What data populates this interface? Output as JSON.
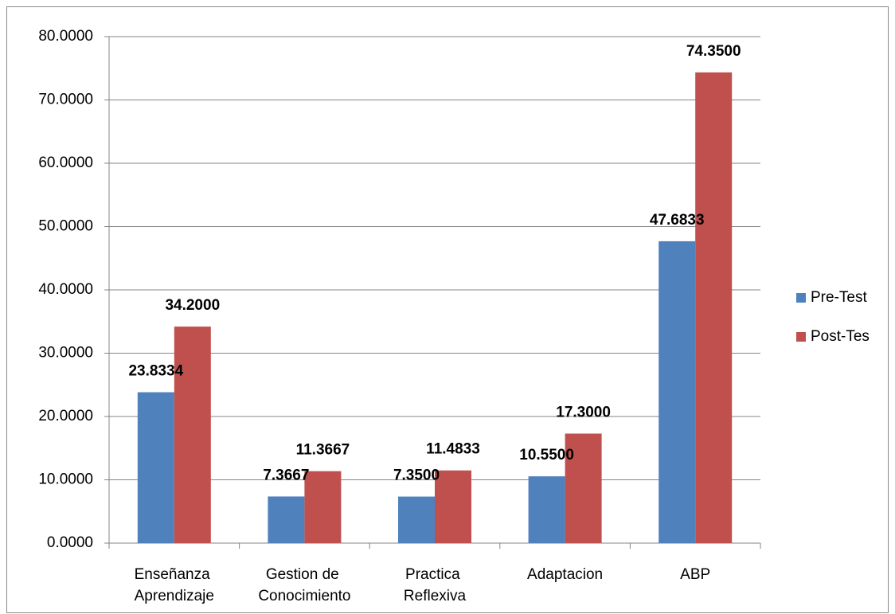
{
  "chart_data": {
    "type": "bar",
    "categories": [
      "Enseñanza Aprendizaje",
      "Gestion de Conocimiento",
      "Practica Reflexiva",
      "Adaptacion",
      "ABP"
    ],
    "series": [
      {
        "name": "Pre-Test",
        "color": "#4f81bd",
        "values": [
          23.8334,
          7.3667,
          7.35,
          10.55,
          47.6833
        ],
        "value_labels": [
          "23.8334",
          "7.3667",
          "7.3500",
          "10.5500",
          "47.6833"
        ]
      },
      {
        "name": "Post-Tes",
        "color": "#c0504d",
        "values": [
          34.2,
          11.3667,
          11.4833,
          17.3,
          74.35
        ],
        "value_labels": [
          "34.2000",
          "11.3667",
          "11.4833",
          "17.3000",
          "74.3500"
        ]
      }
    ],
    "ylim": [
      0,
      80
    ],
    "yticks": [
      {
        "value": 0,
        "label": "0.0000"
      },
      {
        "value": 10,
        "label": "10.0000"
      },
      {
        "value": 20,
        "label": "20.0000"
      },
      {
        "value": 30,
        "label": "30.0000"
      },
      {
        "value": 40,
        "label": "40.0000"
      },
      {
        "value": 50,
        "label": "50.0000"
      },
      {
        "value": 60,
        "label": "60.0000"
      },
      {
        "value": 70,
        "label": "70.0000"
      },
      {
        "value": 80,
        "label": "80.0000"
      }
    ],
    "grid": true,
    "legend": "right"
  }
}
